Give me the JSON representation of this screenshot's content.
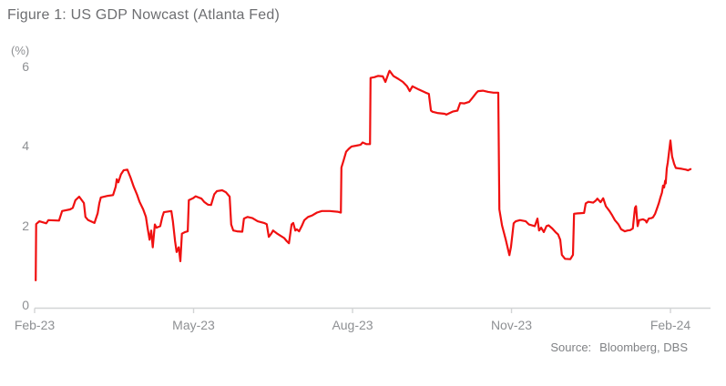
{
  "title": "Figure 1: US GDP Nowcast (Atlanta Fed)",
  "source": {
    "label": "Source:",
    "value": "Bloomberg, DBS"
  },
  "chart_data": {
    "type": "line",
    "title": "Figure 1: US GDP Nowcast (Atlanta Fed)",
    "ylabel": "(%)",
    "xlabel": "",
    "ylim": [
      0,
      6
    ],
    "grid": false,
    "legend": "none",
    "line_color": "#f01010",
    "axis_color": "#d2d4d5",
    "text_color": "#8e9093",
    "y_ticks": [
      6,
      4,
      2,
      0
    ],
    "y_tick_labels": [
      "6",
      "4",
      "2",
      "0"
    ],
    "x_ticks_months": [
      0,
      3,
      6,
      9,
      12
    ],
    "x_tick_labels": [
      "Feb-23",
      "May-23",
      "Aug-23",
      "Nov-23",
      "Feb-24"
    ],
    "x_unit": "months since Feb-2023",
    "series": [
      {
        "name": "US GDP Nowcast (Atlanta Fed), %",
        "points": [
          [
            0.02,
            0.62
          ],
          [
            0.03,
            2.03
          ],
          [
            0.09,
            2.1
          ],
          [
            0.22,
            2.05
          ],
          [
            0.26,
            2.13
          ],
          [
            0.46,
            2.12
          ],
          [
            0.52,
            2.36
          ],
          [
            0.67,
            2.4
          ],
          [
            0.72,
            2.44
          ],
          [
            0.77,
            2.63
          ],
          [
            0.84,
            2.72
          ],
          [
            0.93,
            2.56
          ],
          [
            0.96,
            2.21
          ],
          [
            1.01,
            2.13
          ],
          [
            1.13,
            2.06
          ],
          [
            1.19,
            2.3
          ],
          [
            1.22,
            2.55
          ],
          [
            1.25,
            2.7
          ],
          [
            1.38,
            2.74
          ],
          [
            1.48,
            2.76
          ],
          [
            1.53,
            2.97
          ],
          [
            1.55,
            3.16
          ],
          [
            1.58,
            3.08
          ],
          [
            1.63,
            3.28
          ],
          [
            1.68,
            3.38
          ],
          [
            1.75,
            3.4
          ],
          [
            1.81,
            3.2
          ],
          [
            1.87,
            2.97
          ],
          [
            1.93,
            2.78
          ],
          [
            1.98,
            2.59
          ],
          [
            2.05,
            2.4
          ],
          [
            2.1,
            2.21
          ],
          [
            2.13,
            1.95
          ],
          [
            2.17,
            1.64
          ],
          [
            2.2,
            1.87
          ],
          [
            2.23,
            1.45
          ],
          [
            2.27,
            2.02
          ],
          [
            2.3,
            1.94
          ],
          [
            2.37,
            1.98
          ],
          [
            2.41,
            2.21
          ],
          [
            2.44,
            2.33
          ],
          [
            2.58,
            2.36
          ],
          [
            2.61,
            2.1
          ],
          [
            2.65,
            1.6
          ],
          [
            2.68,
            1.33
          ],
          [
            2.72,
            1.45
          ],
          [
            2.75,
            1.1
          ],
          [
            2.78,
            1.79
          ],
          [
            2.84,
            1.83
          ],
          [
            2.89,
            1.85
          ],
          [
            2.91,
            2.63
          ],
          [
            2.99,
            2.68
          ],
          [
            3.04,
            2.73
          ],
          [
            3.15,
            2.67
          ],
          [
            3.2,
            2.59
          ],
          [
            3.27,
            2.52
          ],
          [
            3.33,
            2.51
          ],
          [
            3.39,
            2.78
          ],
          [
            3.44,
            2.86
          ],
          [
            3.54,
            2.88
          ],
          [
            3.61,
            2.83
          ],
          [
            3.68,
            2.72
          ],
          [
            3.71,
            2.02
          ],
          [
            3.75,
            1.87
          ],
          [
            3.82,
            1.85
          ],
          [
            3.92,
            1.84
          ],
          [
            3.95,
            2.17
          ],
          [
            4.02,
            2.21
          ],
          [
            4.11,
            2.18
          ],
          [
            4.21,
            2.1
          ],
          [
            4.33,
            2.06
          ],
          [
            4.38,
            2.03
          ],
          [
            4.42,
            1.71
          ],
          [
            4.47,
            1.8
          ],
          [
            4.5,
            1.87
          ],
          [
            4.57,
            1.8
          ],
          [
            4.64,
            1.74
          ],
          [
            4.71,
            1.68
          ],
          [
            4.76,
            1.6
          ],
          [
            4.8,
            1.55
          ],
          [
            4.85,
            2.02
          ],
          [
            4.88,
            2.06
          ],
          [
            4.92,
            1.87
          ],
          [
            4.95,
            1.9
          ],
          [
            4.99,
            1.85
          ],
          [
            5.04,
            1.98
          ],
          [
            5.09,
            2.13
          ],
          [
            5.16,
            2.21
          ],
          [
            5.24,
            2.25
          ],
          [
            5.33,
            2.32
          ],
          [
            5.42,
            2.36
          ],
          [
            5.57,
            2.36
          ],
          [
            5.72,
            2.34
          ],
          [
            5.78,
            2.32
          ],
          [
            5.79,
            3.45
          ],
          [
            5.83,
            3.62
          ],
          [
            5.88,
            3.85
          ],
          [
            5.93,
            3.92
          ],
          [
            5.98,
            3.98
          ],
          [
            6.07,
            4.0
          ],
          [
            6.15,
            4.02
          ],
          [
            6.19,
            4.08
          ],
          [
            6.26,
            4.04
          ],
          [
            6.33,
            4.04
          ],
          [
            6.34,
            5.7
          ],
          [
            6.41,
            5.72
          ],
          [
            6.48,
            5.75
          ],
          [
            6.57,
            5.74
          ],
          [
            6.62,
            5.6
          ],
          [
            6.69,
            5.86
          ],
          [
            6.7,
            5.88
          ],
          [
            6.77,
            5.75
          ],
          [
            6.86,
            5.68
          ],
          [
            6.95,
            5.6
          ],
          [
            7.03,
            5.49
          ],
          [
            7.08,
            5.37
          ],
          [
            7.13,
            5.49
          ],
          [
            7.25,
            5.41
          ],
          [
            7.38,
            5.33
          ],
          [
            7.44,
            5.3
          ],
          [
            7.48,
            4.88
          ],
          [
            7.51,
            4.85
          ],
          [
            7.6,
            4.82
          ],
          [
            7.74,
            4.8
          ],
          [
            7.77,
            4.78
          ],
          [
            7.9,
            4.86
          ],
          [
            7.98,
            4.88
          ],
          [
            8.03,
            5.07
          ],
          [
            8.11,
            5.06
          ],
          [
            8.2,
            5.1
          ],
          [
            8.25,
            5.18
          ],
          [
            8.34,
            5.33
          ],
          [
            8.37,
            5.37
          ],
          [
            8.46,
            5.38
          ],
          [
            8.56,
            5.35
          ],
          [
            8.66,
            5.33
          ],
          [
            8.75,
            5.33
          ],
          [
            8.77,
            2.4
          ],
          [
            8.82,
            2.0
          ],
          [
            8.89,
            1.65
          ],
          [
            8.96,
            1.25
          ],
          [
            8.99,
            1.45
          ],
          [
            9.04,
            2.05
          ],
          [
            9.08,
            2.1
          ],
          [
            9.16,
            2.13
          ],
          [
            9.27,
            2.1
          ],
          [
            9.33,
            2.02
          ],
          [
            9.44,
            1.98
          ],
          [
            9.49,
            2.17
          ],
          [
            9.52,
            1.87
          ],
          [
            9.56,
            1.94
          ],
          [
            9.61,
            1.83
          ],
          [
            9.66,
            1.98
          ],
          [
            9.7,
            2.0
          ],
          [
            9.77,
            1.92
          ],
          [
            9.83,
            1.83
          ],
          [
            9.88,
            1.77
          ],
          [
            9.92,
            1.64
          ],
          [
            9.95,
            1.26
          ],
          [
            10.01,
            1.16
          ],
          [
            10.11,
            1.15
          ],
          [
            10.16,
            1.26
          ],
          [
            10.18,
            2.29
          ],
          [
            10.25,
            2.3
          ],
          [
            10.37,
            2.31
          ],
          [
            10.4,
            2.55
          ],
          [
            10.45,
            2.59
          ],
          [
            10.54,
            2.57
          ],
          [
            10.59,
            2.62
          ],
          [
            10.62,
            2.67
          ],
          [
            10.68,
            2.58
          ],
          [
            10.73,
            2.68
          ],
          [
            10.78,
            2.48
          ],
          [
            10.85,
            2.36
          ],
          [
            10.9,
            2.25
          ],
          [
            10.95,
            2.13
          ],
          [
            11.02,
            2.02
          ],
          [
            11.07,
            1.9
          ],
          [
            11.14,
            1.85
          ],
          [
            11.19,
            1.87
          ],
          [
            11.24,
            1.88
          ],
          [
            11.29,
            1.92
          ],
          [
            11.33,
            2.44
          ],
          [
            11.35,
            2.48
          ],
          [
            11.38,
            1.98
          ],
          [
            11.41,
            2.13
          ],
          [
            11.48,
            2.15
          ],
          [
            11.53,
            2.12
          ],
          [
            11.55,
            2.07
          ],
          [
            11.59,
            2.17
          ],
          [
            11.64,
            2.18
          ],
          [
            11.67,
            2.2
          ],
          [
            11.71,
            2.29
          ],
          [
            11.74,
            2.4
          ],
          [
            11.78,
            2.55
          ],
          [
            11.81,
            2.7
          ],
          [
            11.84,
            2.82
          ],
          [
            11.86,
            3.0
          ],
          [
            11.88,
            2.95
          ],
          [
            11.9,
            3.12
          ],
          [
            11.91,
            3.05
          ],
          [
            11.93,
            3.43
          ],
          [
            11.95,
            3.58
          ],
          [
            12.0,
            4.13
          ],
          [
            12.03,
            3.73
          ],
          [
            12.07,
            3.54
          ],
          [
            12.1,
            3.44
          ],
          [
            12.21,
            3.42
          ],
          [
            12.29,
            3.4
          ],
          [
            12.33,
            3.38
          ],
          [
            12.38,
            3.41
          ]
        ]
      }
    ]
  }
}
